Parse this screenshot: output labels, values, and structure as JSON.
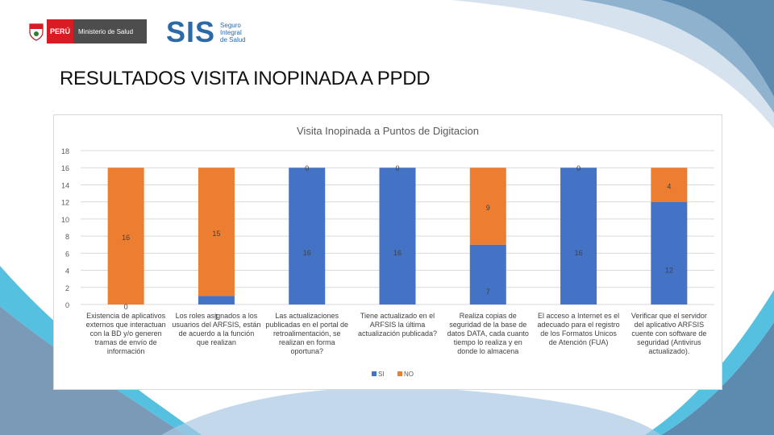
{
  "header": {
    "peru_label": "PERÚ",
    "ministry_label": "Ministerio de Salud",
    "sis_label": "SIS",
    "sis_sub": [
      "Seguro",
      "Integral",
      "de Salud"
    ]
  },
  "page": {
    "title": "RESULTADOS VISITA INOPINADA A PPDD"
  },
  "colors": {
    "si": "#4472c4",
    "no": "#ed7d31",
    "accent_blue": "#4a8cc4",
    "accent_cyan": "#56c0e0"
  },
  "chart_data": {
    "type": "bar",
    "stacked": true,
    "title": "Visita Inopinada a Puntos de Digitacion",
    "ylim": [
      0,
      18
    ],
    "yticks": [
      0,
      2,
      4,
      6,
      8,
      10,
      12,
      14,
      16,
      18
    ],
    "grid": true,
    "legend_position": "bottom",
    "categories": [
      "Existencia de aplicativos externos que interactuan con la BD y/o generen tramas de envío de información",
      "Los roles asignados a los usuarios del ARFSIS, están de acuerdo a la función que realizan",
      "Las actualizaciones publicadas en el portal de retroalimentación, se realizan en forma oportuna?",
      "Tiene actualizado en el ARFSIS la última actualización publicada?",
      "Realiza copias de seguridad de la base de datos DATA, cada cuanto tiempo lo realiza y en donde lo almacena",
      "El acceso a Internet es el adecuado para el registro de los Formatos Unicos de Atención (FUA)",
      "Verificar que el servidor del aplicativo ARFSIS cuente con software de seguridad (Antivirus actualizado)."
    ],
    "category_lines": [
      [
        "Existencia de aplicativos",
        "externos que interactuan",
        "con la BD y/o generen",
        "tramas de envío de",
        "información"
      ],
      [
        "Los roles asignados a los",
        "usuarios del ARFSIS, están",
        "de acuerdo a la función",
        "que realizan"
      ],
      [
        "Las actualizaciones",
        "publicadas en el portal de",
        "retroalimentación, se",
        "realizan en forma",
        "oportuna?"
      ],
      [
        "Tiene actualizado en el",
        "ARFSIS la última",
        "actualización publicada?"
      ],
      [
        "Realiza copias de",
        "seguridad de la base de",
        "datos DATA, cada cuanto",
        "tiempo lo realiza y en",
        "donde lo almacena"
      ],
      [
        "El acceso a Internet es el",
        "adecuado para el registro",
        "de los Formatos Unicos",
        "de Atención (FUA)"
      ],
      [
        "Verificar que el servidor",
        "del aplicativo ARFSIS",
        "cuente con software de",
        "seguridad (Antivirus",
        "actualizado)."
      ]
    ],
    "series": [
      {
        "name": "SI",
        "values": [
          0,
          1,
          16,
          16,
          7,
          16,
          12
        ]
      },
      {
        "name": "NO",
        "values": [
          16,
          15,
          0,
          0,
          9,
          0,
          4
        ]
      }
    ]
  }
}
